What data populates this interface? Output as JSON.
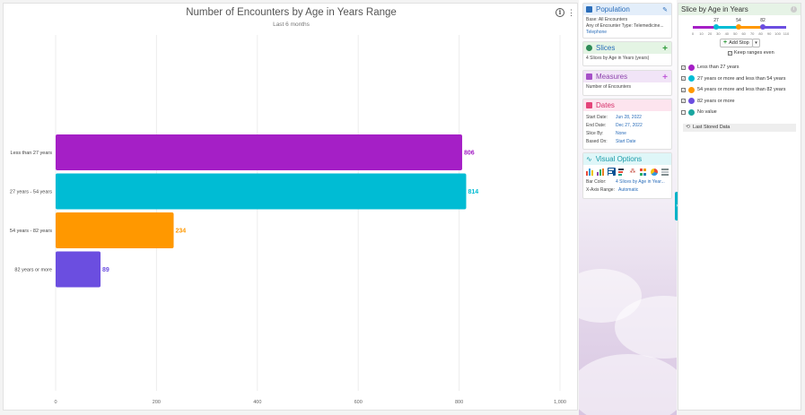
{
  "chart": {
    "title": "Number of Encounters by Age in Years Range",
    "subtitle": "Last 6 months"
  },
  "chart_data": {
    "type": "bar",
    "orientation": "horizontal",
    "title": "Number of Encounters by Age in Years Range",
    "subtitle": "Last 6 months",
    "categories": [
      "Less than 27 years",
      "27 years - 54 years",
      "54 years - 82 years",
      "82 years or more"
    ],
    "values": [
      806,
      814,
      234,
      89
    ],
    "colors": [
      "#a51fc6",
      "#00bcd4",
      "#ff9800",
      "#6b4ee0"
    ],
    "xticks": [
      "0",
      "200",
      "400",
      "600",
      "800",
      "1,000"
    ],
    "xlim": [
      0,
      1000
    ],
    "grid": true
  },
  "panels": {
    "population": {
      "title": "Population",
      "lines": [
        "Base: All Encounters",
        "Any of Encounter Type: Telemedicine...",
        "Telephone"
      ]
    },
    "slices": {
      "title": "Slices",
      "text": "4 Slices by Age in Years (years)"
    },
    "measures": {
      "title": "Measures",
      "text": "Number of Encounters"
    },
    "dates": {
      "title": "Dates",
      "rows": [
        {
          "k": "Start Date:",
          "v": "Jun 28, 2022"
        },
        {
          "k": "End Date:",
          "v": "Dec 27, 2022"
        },
        {
          "k": "Slice By:",
          "v": "None"
        },
        {
          "k": "Based On:",
          "v": "Start Date"
        }
      ]
    },
    "visual": {
      "title": "Visual Options",
      "rows": [
        {
          "k": "Bar Color:",
          "v": "4 Slices by Age in Year..."
        },
        {
          "k": "X-Axis Range:",
          "v": "Automatic"
        }
      ]
    }
  },
  "slicer": {
    "title": "Slice by Age in Years",
    "stops": [
      "27",
      "54",
      "82"
    ],
    "ticks": [
      "0",
      "10",
      "20",
      "30",
      "40",
      "50",
      "60",
      "70",
      "80",
      "90",
      "100",
      "110"
    ],
    "add_stop": "Add Stop",
    "keep_even": "Keep ranges even",
    "items": [
      {
        "label": "Less than 27 years",
        "color": "#a51fc6",
        "checked": true
      },
      {
        "label": "27 years or more and less than 54 years",
        "color": "#00bcd4",
        "checked": true
      },
      {
        "label": "54 years or more and less than 82 years",
        "color": "#ff9800",
        "checked": true
      },
      {
        "label": "82 years or more",
        "color": "#6b4ee0",
        "checked": true
      },
      {
        "label": "No value",
        "color": "#1aa6a0",
        "checked": false
      }
    ],
    "last_stored": "Last Stored Data"
  }
}
